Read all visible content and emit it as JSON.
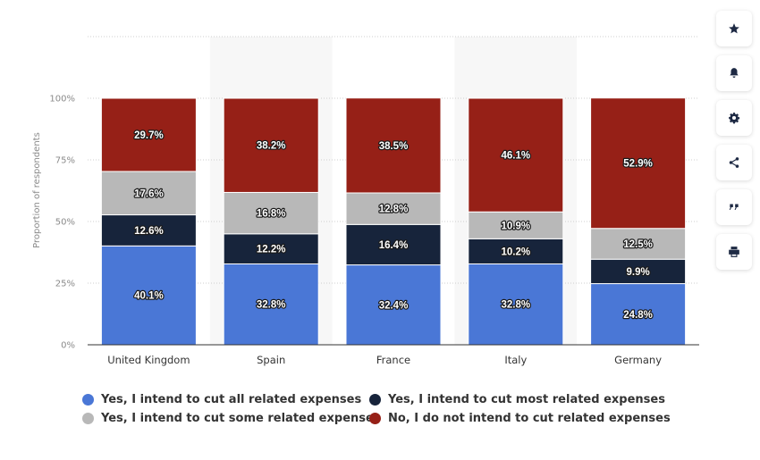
{
  "chart_data": {
    "type": "stacked-bar",
    "categories": [
      "United Kingdom",
      "Spain",
      "France",
      "Italy",
      "Germany"
    ],
    "series": [
      {
        "name": "Yes, I intend to cut all related expenses",
        "color": "#4a77d6",
        "values": [
          40.1,
          32.8,
          32.4,
          32.8,
          24.8
        ],
        "labels": [
          "40.1%",
          "32.8%",
          "32.4%",
          "32.8%",
          "24.8%"
        ]
      },
      {
        "name": "Yes, I intend to cut most related expenses",
        "color": "#17243b",
        "values": [
          12.6,
          12.2,
          16.4,
          10.2,
          9.9
        ],
        "labels": [
          "12.6%",
          "12.2%",
          "16.4%",
          "10.2%",
          "9.9%"
        ]
      },
      {
        "name": "Yes, I intend to cut some related expenses",
        "color": "#b8b8b8",
        "values": [
          17.6,
          16.8,
          12.8,
          10.9,
          12.5
        ],
        "labels": [
          "17.6%",
          "16.8%",
          "12.8%",
          "10.9%",
          "12.5%"
        ]
      },
      {
        "name": "No, I do not intend to cut related expenses",
        "color": "#962017",
        "values": [
          29.7,
          38.2,
          38.5,
          46.1,
          52.9
        ],
        "labels": [
          "29.7%",
          "38.2%",
          "38.5%",
          "46.1%",
          "52.9%"
        ]
      }
    ],
    "ylabel": "Proportion of respondents",
    "xlabel": "",
    "ylim": [
      0,
      100
    ],
    "yticks": [
      0,
      25,
      50,
      75,
      100
    ],
    "ytick_labels": [
      "0%",
      "25%",
      "50%",
      "75%",
      "100%"
    ],
    "grid": true,
    "legend_position": "bottom"
  },
  "legend": {
    "items": [
      {
        "label": "Yes, I intend to cut all related expenses",
        "color": "#4a77d6"
      },
      {
        "label": "Yes, I intend to cut most related expenses",
        "color": "#17243b"
      },
      {
        "label": "Yes, I intend to cut some related expenses",
        "color": "#b8b8b8"
      },
      {
        "label": "No, I do not intend to cut related expenses",
        "color": "#962017"
      }
    ]
  },
  "toolbar": {
    "buttons": [
      {
        "icon": "star-icon"
      },
      {
        "icon": "bell-icon"
      },
      {
        "icon": "gear-icon"
      },
      {
        "icon": "share-icon"
      },
      {
        "icon": "quote-icon"
      },
      {
        "icon": "print-icon"
      }
    ]
  }
}
